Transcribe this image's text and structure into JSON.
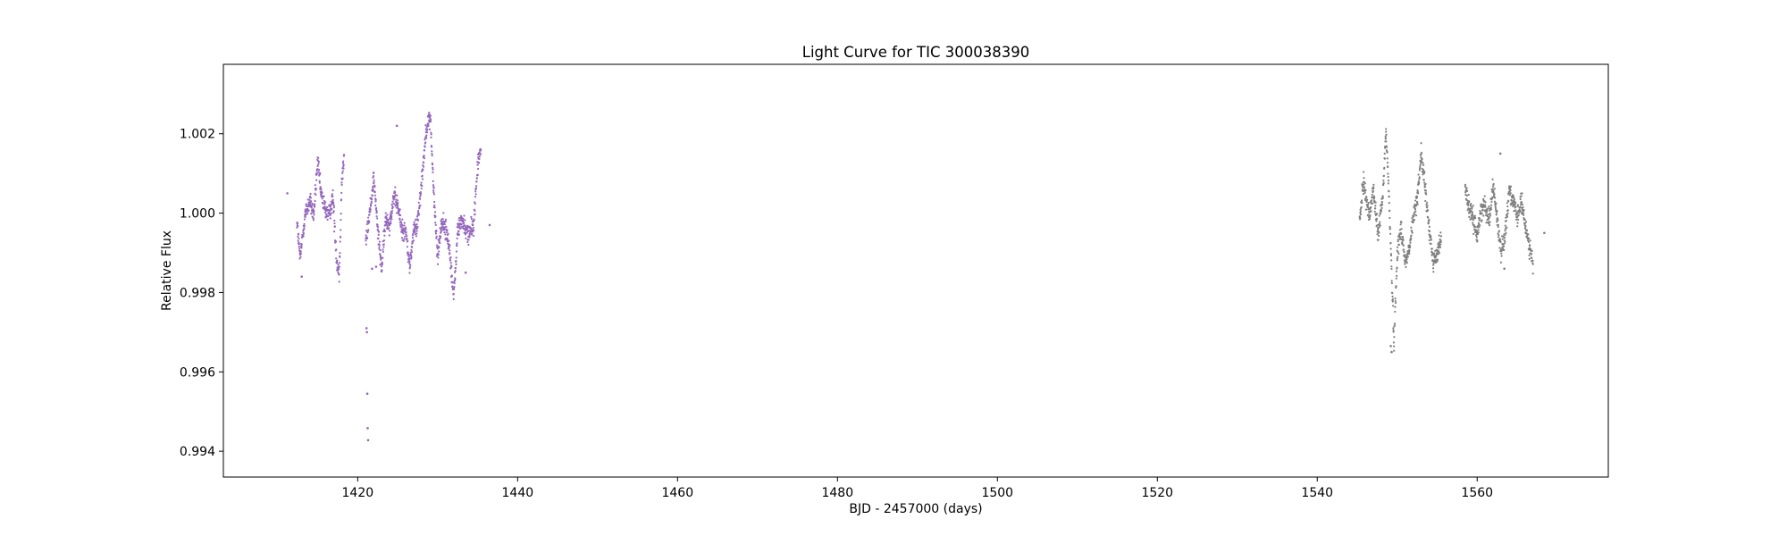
{
  "chart_data": {
    "type": "scatter",
    "title": "Light Curve for TIC 300038390",
    "xlabel": "BJD - 2457000 (days)",
    "ylabel": "Relative Flux",
    "xlim": [
      1403.2,
      1576.4
    ],
    "ylim": [
      0.99335,
      1.00375
    ],
    "xticks": [
      1420,
      1440,
      1460,
      1480,
      1500,
      1520,
      1540,
      1560
    ],
    "xtick_labels": [
      "1420",
      "1440",
      "1460",
      "1480",
      "1500",
      "1520",
      "1540",
      "1560"
    ],
    "yticks": [
      0.994,
      0.996,
      0.998,
      1.0,
      1.002
    ],
    "ytick_labels": [
      "0.994",
      "0.996",
      "0.998",
      "1.000",
      "1.002"
    ],
    "grid": false,
    "legend": "none",
    "series": [
      {
        "color": "#9467bd",
        "cadence_days": 0.0208,
        "trend_x": [
          1412.4,
          1412.8,
          1413.4,
          1414.0,
          1414.5,
          1415.0,
          1415.4,
          1415.9,
          1416.4,
          1416.9,
          1417.4,
          1417.7,
          1418.0,
          1418.3,
          1421.0,
          1421.5,
          1422.0,
          1422.6,
          1423.0,
          1423.5,
          1424.0,
          1424.5,
          1425.0,
          1425.5,
          1426.0,
          1426.5,
          1427.0,
          1427.4,
          1428.0,
          1428.6,
          1429.1,
          1429.5,
          1430.0,
          1430.5,
          1431.0,
          1431.5,
          1432.0,
          1432.5,
          1433.0,
          1433.5,
          1434.0,
          1434.5,
          1435.0,
          1435.4
        ],
        "trend_y": [
          0.9998,
          0.99885,
          0.99995,
          1.0003,
          0.99995,
          1.0013,
          1.0005,
          1.0001,
          0.99995,
          1.0004,
          0.99875,
          0.9985,
          1.0008,
          1.0014,
          0.99925,
          1.0,
          1.0009,
          0.99935,
          0.9986,
          0.99985,
          0.99975,
          1.0004,
          1.0002,
          0.9996,
          0.99955,
          0.99865,
          0.99955,
          0.99965,
          1.0008,
          1.0022,
          1.0024,
          1.0005,
          0.9989,
          0.9998,
          0.9996,
          0.9991,
          0.99785,
          0.99955,
          0.99985,
          0.99955,
          0.9995,
          0.9997,
          1.0012,
          1.0016
        ],
        "noise": 0.0002,
        "outliers": [
          [
            1411.2,
            1.0005
          ],
          [
            1413.0,
            0.9984
          ],
          [
            1421.1,
            0.9971
          ],
          [
            1421.15,
            0.997
          ],
          [
            1421.2,
            0.99545
          ],
          [
            1421.25,
            0.99458
          ],
          [
            1421.3,
            0.99428
          ],
          [
            1421.8,
            0.9986
          ],
          [
            1422.3,
            0.99865
          ],
          [
            1424.9,
            1.0022
          ],
          [
            1433.5,
            0.9985
          ],
          [
            1436.5,
            0.9997
          ]
        ]
      },
      {
        "color": "#7f7f7f",
        "cadence_days": 0.0208,
        "trend_x": [
          1545.3,
          1545.8,
          1546.5,
          1547.0,
          1547.6,
          1548.2,
          1548.6,
          1549.0,
          1549.3,
          1549.6,
          1550.0,
          1550.5,
          1551.0,
          1551.5,
          1552.0,
          1552.5,
          1553.0,
          1553.5,
          1554.0,
          1554.5,
          1555.0,
          1555.5,
          1558.5,
          1559.0,
          1559.5,
          1560.0,
          1560.5,
          1561.0,
          1561.5,
          1562.0,
          1562.5,
          1563.0,
          1563.5,
          1564.0,
          1564.5,
          1565.0,
          1565.5,
          1566.0,
          1566.5,
          1567.0
        ],
        "trend_y": [
          0.9998,
          1.0008,
          0.9999,
          1.0006,
          0.99945,
          1.0004,
          1.0021,
          1.0003,
          0.99855,
          0.99675,
          0.999,
          0.99965,
          0.99875,
          0.99905,
          0.99985,
          1.0004,
          1.0015,
          1.0006,
          0.9996,
          0.9988,
          0.99895,
          0.9994,
          1.0007,
          1.0001,
          0.99985,
          0.99945,
          1.0001,
          1.0002,
          0.99985,
          1.0007,
          0.99985,
          0.999,
          0.9995,
          1.0006,
          1.0003,
          0.99985,
          1.0003,
          0.9997,
          0.99925,
          0.99865
        ],
        "noise": 0.0002,
        "outliers": [
          [
            1549.2,
            0.99665
          ],
          [
            1549.3,
            0.9965
          ],
          [
            1562.9,
            1.0015
          ],
          [
            1563.4,
            0.9986
          ],
          [
            1568.4,
            0.9995
          ]
        ]
      }
    ]
  }
}
